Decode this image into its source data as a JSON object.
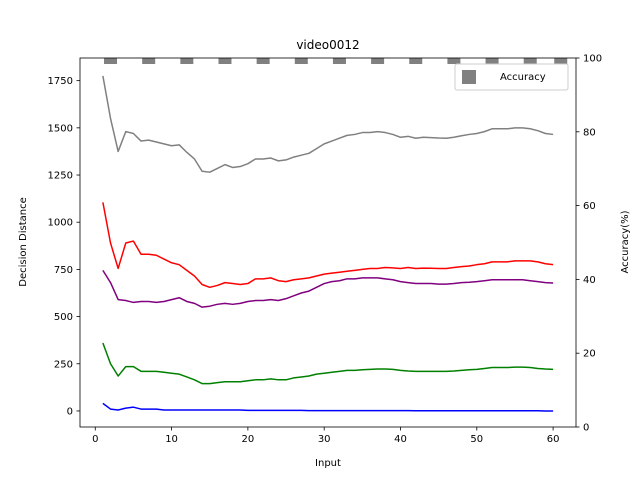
{
  "chart_data": {
    "type": "line",
    "title": "video0012",
    "xlabel": "Input",
    "ylabel": "Decision Distance",
    "y2label": "Accuracy(%)",
    "xlim": [
      -2,
      63
    ],
    "ylim": [
      -85,
      1870
    ],
    "y2lim": [
      0,
      100
    ],
    "xticks": [
      0,
      10,
      20,
      30,
      40,
      50,
      60
    ],
    "yticks": [
      0,
      250,
      500,
      750,
      1000,
      1250,
      1500,
      1750
    ],
    "y2ticks": [
      0,
      20,
      40,
      60,
      80,
      100
    ],
    "legend": {
      "placement": "top-right",
      "entries": [
        "Accuracy"
      ]
    },
    "accuracy_series": {
      "name": "Accuracy",
      "color": "#808080",
      "x": [
        2,
        7,
        12,
        17,
        22,
        27,
        32,
        37,
        42,
        47,
        52,
        57,
        61
      ],
      "values": [
        100,
        100,
        100,
        100,
        100,
        100,
        100,
        100,
        100,
        100,
        100,
        100,
        100
      ]
    },
    "x": [
      1,
      2,
      3,
      4,
      5,
      6,
      7,
      8,
      9,
      10,
      11,
      12,
      13,
      14,
      15,
      16,
      17,
      18,
      19,
      20,
      21,
      22,
      23,
      24,
      25,
      26,
      27,
      28,
      29,
      30,
      31,
      32,
      33,
      34,
      35,
      36,
      37,
      38,
      39,
      40,
      41,
      42,
      43,
      44,
      45,
      46,
      47,
      48,
      49,
      50,
      51,
      52,
      53,
      54,
      55,
      56,
      57,
      58,
      59,
      60
    ],
    "series": [
      {
        "color": "#808080",
        "values": [
          1775,
          1550,
          1375,
          1480,
          1470,
          1430,
          1435,
          1425,
          1415,
          1405,
          1410,
          1370,
          1335,
          1270,
          1265,
          1285,
          1305,
          1290,
          1295,
          1310,
          1335,
          1335,
          1340,
          1325,
          1330,
          1345,
          1355,
          1365,
          1390,
          1415,
          1430,
          1445,
          1460,
          1465,
          1475,
          1475,
          1480,
          1475,
          1465,
          1450,
          1455,
          1445,
          1450,
          1448,
          1446,
          1445,
          1450,
          1458,
          1465,
          1470,
          1480,
          1495,
          1495,
          1495,
          1500,
          1500,
          1495,
          1485,
          1470,
          1465
        ]
      },
      {
        "color": "#ff0000",
        "values": [
          1105,
          890,
          755,
          890,
          900,
          830,
          830,
          825,
          805,
          785,
          775,
          745,
          715,
          670,
          655,
          665,
          680,
          675,
          670,
          675,
          700,
          700,
          705,
          690,
          685,
          695,
          700,
          705,
          715,
          725,
          730,
          735,
          740,
          745,
          750,
          755,
          755,
          760,
          758,
          755,
          760,
          755,
          757,
          756,
          755,
          755,
          760,
          765,
          768,
          775,
          780,
          790,
          790,
          790,
          795,
          795,
          795,
          790,
          780,
          775
        ]
      },
      {
        "color": "#800080",
        "values": [
          745,
          680,
          590,
          585,
          575,
          580,
          580,
          575,
          580,
          590,
          600,
          580,
          570,
          550,
          555,
          565,
          570,
          565,
          570,
          580,
          585,
          585,
          590,
          585,
          595,
          610,
          625,
          635,
          655,
          675,
          685,
          690,
          700,
          700,
          705,
          705,
          705,
          700,
          695,
          685,
          680,
          675,
          675,
          675,
          672,
          672,
          675,
          680,
          682,
          685,
          690,
          695,
          695,
          695,
          695,
          695,
          690,
          685,
          680,
          678
        ]
      },
      {
        "color": "#008000",
        "values": [
          360,
          250,
          185,
          235,
          235,
          210,
          210,
          210,
          205,
          200,
          195,
          180,
          165,
          145,
          145,
          150,
          155,
          155,
          155,
          160,
          165,
          165,
          170,
          165,
          165,
          175,
          180,
          185,
          195,
          200,
          205,
          210,
          215,
          215,
          218,
          220,
          222,
          222,
          220,
          215,
          212,
          210,
          210,
          210,
          210,
          210,
          212,
          215,
          218,
          220,
          225,
          230,
          230,
          230,
          232,
          232,
          230,
          225,
          222,
          220
        ]
      },
      {
        "color": "#0000ff",
        "values": [
          40,
          10,
          5,
          15,
          20,
          10,
          10,
          10,
          5,
          5,
          5,
          5,
          5,
          5,
          5,
          5,
          5,
          5,
          5,
          3,
          3,
          3,
          3,
          3,
          3,
          3,
          3,
          2,
          2,
          2,
          2,
          2,
          2,
          2,
          2,
          2,
          2,
          2,
          2,
          2,
          2,
          1,
          1,
          1,
          1,
          1,
          1,
          1,
          1,
          1,
          1,
          1,
          1,
          1,
          1,
          1,
          1,
          1,
          0,
          0
        ]
      }
    ]
  }
}
